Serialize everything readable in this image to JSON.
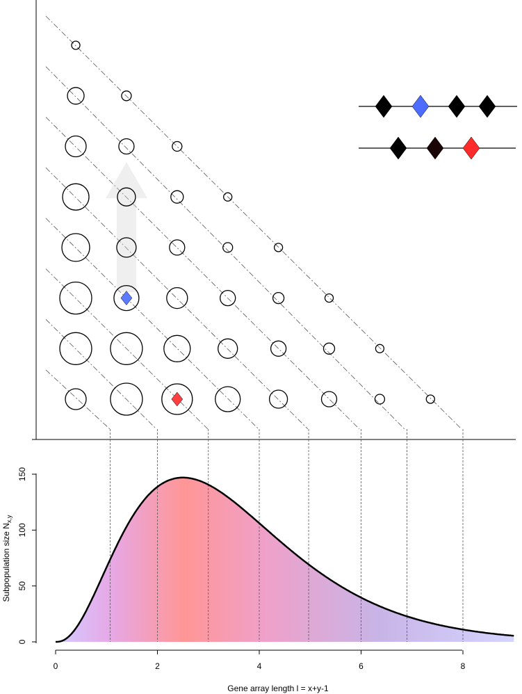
{
  "chart_data": [
    {
      "type": "scatter",
      "description_of_marks": "bubble grid",
      "grid": {
        "rows": [
          {
            "row": 1,
            "radii": [
              15,
              23,
              22,
              18,
              13,
              11,
              7,
              6
            ]
          },
          {
            "row": 2,
            "radii": [
              23,
              23,
              19,
              14,
              11,
              8,
              6
            ]
          },
          {
            "row": 3,
            "radii": [
              23,
              18,
              15,
              11,
              8,
              6
            ]
          },
          {
            "row": 4,
            "radii": [
              20,
              14,
              11,
              7,
              6
            ]
          },
          {
            "row": 5,
            "radii": [
              19,
              13,
              9,
              6
            ]
          },
          {
            "row": 6,
            "radii": [
              15,
              11,
              7
            ]
          },
          {
            "row": 7,
            "radii": [
              12,
              7
            ]
          },
          {
            "row": 8,
            "radii": [
              6
            ]
          }
        ]
      },
      "highlights": [
        {
          "row": 1,
          "col": 3,
          "color": "#ff4040"
        },
        {
          "row": 3,
          "col": 2,
          "color": "#5a7aff"
        }
      ],
      "arrays": [
        {
          "markers": [
            "#000000",
            "#4d6bff",
            "#000000",
            "#000000"
          ]
        },
        {
          "markers": [
            "#000000",
            "#1a0505",
            "#ff2a2a"
          ]
        }
      ]
    },
    {
      "type": "area",
      "xlabel": "Gene array length l = x+y-1",
      "ylabel": "Subpopulation size N",
      "ylabel_sub": "x,y",
      "xlim": [
        0,
        9
      ],
      "ylim": [
        0,
        150
      ],
      "xticks": [
        0,
        2,
        4,
        6,
        8
      ],
      "yticks": [
        0,
        50,
        100,
        150
      ],
      "xtick_labels": [
        "0",
        "2",
        "4",
        "6",
        "8"
      ],
      "ytick_labels": [
        "0",
        "50",
        "100",
        "150"
      ],
      "curve": {
        "amplitude": 147,
        "shape_k": 2.5,
        "scale": 1.0
      },
      "vlines": [
        1.07,
        2.0,
        3.0,
        4.0,
        4.97,
        6.0,
        6.9,
        8.0
      ],
      "colors": {
        "line": "#000000",
        "left": "#d4ccff",
        "peak": "#ff9696",
        "right": "#d4d4ff"
      }
    }
  ]
}
